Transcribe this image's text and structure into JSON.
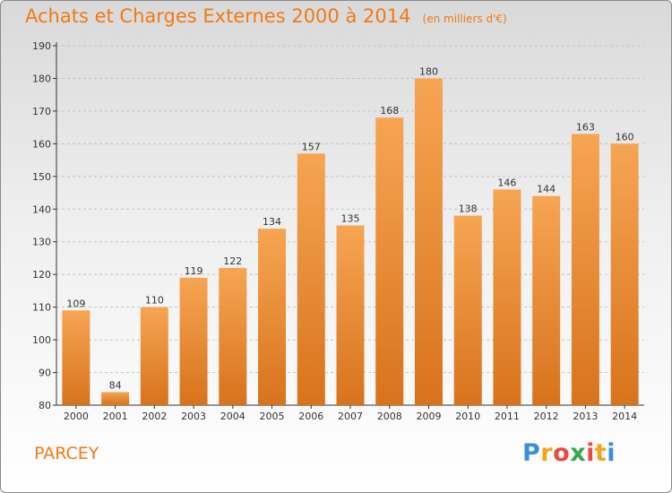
{
  "header": {
    "title": "Achats et Charges Externes 2000 à 2014",
    "unit": "(en milliers d'€)"
  },
  "footer": {
    "commune": "PARCEY",
    "brand": {
      "letters": [
        "P",
        "r",
        "o",
        "x",
        "i",
        "t",
        "i"
      ],
      "colors": [
        "#3b8fd9",
        "#f2a51c",
        "#e84c3d",
        "#36a84a",
        "#e84c3d",
        "#f2a51c",
        "#3b8fd9"
      ]
    }
  },
  "colors": {
    "bar_light": "#f6a553",
    "bar_dark": "#d8731c",
    "accent": "#f07a16",
    "axis": "#333333"
  },
  "chart_data": {
    "type": "bar",
    "categories": [
      "2000",
      "2001",
      "2002",
      "2003",
      "2004",
      "2005",
      "2006",
      "2007",
      "2008",
      "2009",
      "2010",
      "2011",
      "2012",
      "2013",
      "2014"
    ],
    "values": [
      109,
      84,
      110,
      119,
      122,
      134,
      157,
      135,
      168,
      180,
      138,
      146,
      144,
      163,
      160
    ],
    "ylim": [
      80,
      190
    ],
    "yticks": [
      80,
      90,
      100,
      110,
      120,
      130,
      140,
      150,
      160,
      170,
      180,
      190
    ],
    "grid": true,
    "legend": "none"
  }
}
